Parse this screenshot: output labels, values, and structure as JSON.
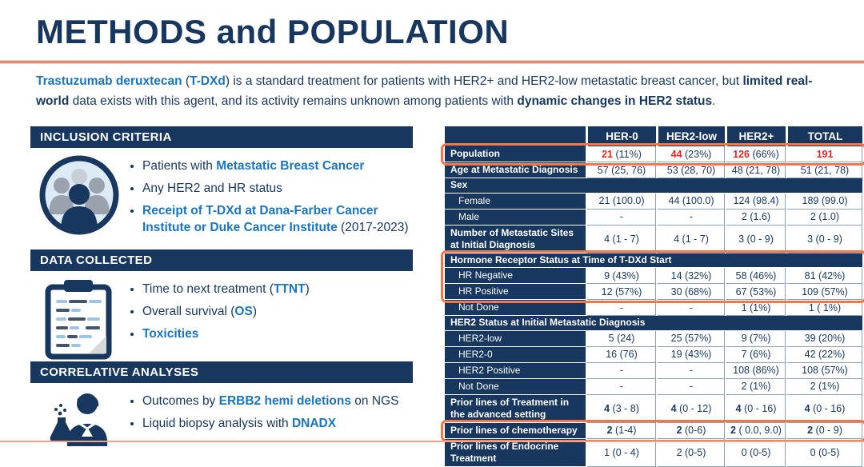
{
  "title": "METHODS and POPULATION",
  "colors": {
    "navy": "#17375E",
    "blue_accent": "#1B75BC",
    "red_emphasis": "#EE2420",
    "highlight_orange": "#F0784C",
    "divider_salmon": "#D9917B"
  },
  "intro": {
    "segments": [
      {
        "t": "Trastuzumab deruxtecan",
        "style": "blue-bold"
      },
      {
        "t": " (",
        "style": "normal"
      },
      {
        "t": "T-DXd",
        "style": "blue-bold"
      },
      {
        "t": ") is a standard treatment for patients with HER2+ and HER2-low metastatic breast cancer, but ",
        "style": "normal"
      },
      {
        "t": "limited real-world",
        "style": "navy-bold"
      },
      {
        "t": " data exists with this agent, and its activity remains unknown among patients with ",
        "style": "normal"
      },
      {
        "t": "dynamic changes in HER2 status",
        "style": "navy-bold"
      },
      {
        "t": ".",
        "style": "normal"
      }
    ]
  },
  "sections": [
    {
      "title": "INCLUSION CRITERIA",
      "icon": "people-icon",
      "bullets": [
        [
          {
            "t": "Patients with ",
            "style": "normal"
          },
          {
            "t": "Metastatic Breast Cancer",
            "style": "blue-bold"
          }
        ],
        [
          {
            "t": "Any HER2 and HR status",
            "style": "normal"
          }
        ],
        [
          {
            "t": "Receipt of T-DXd at Dana-Farber Cancer Institute or Duke Cancer Institute",
            "style": "blue-bold"
          },
          {
            "t": " (2017-2023)",
            "style": "normal"
          }
        ]
      ]
    },
    {
      "title": "DATA COLLECTED",
      "icon": "clipboard-icon",
      "bullets": [
        [
          {
            "t": "Time to next treatment (",
            "style": "normal"
          },
          {
            "t": "TTNT",
            "style": "blue-bold"
          },
          {
            "t": ")",
            "style": "normal"
          }
        ],
        [
          {
            "t": "Overall survival (",
            "style": "normal"
          },
          {
            "t": "OS",
            "style": "blue-bold"
          },
          {
            "t": ")",
            "style": "normal"
          }
        ],
        [
          {
            "t": "Toxicities",
            "style": "blue-bold"
          }
        ]
      ]
    },
    {
      "title": "CORRELATIVE ANALYSES",
      "icon": "scientist-icon",
      "bullets": [
        [
          {
            "t": "Outcomes by ",
            "style": "normal"
          },
          {
            "t": "ERBB2 hemi deletions",
            "style": "blue-bold"
          },
          {
            "t": " on NGS",
            "style": "normal"
          }
        ],
        [
          {
            "t": "Liquid biopsy analysis with ",
            "style": "normal"
          },
          {
            "t": "DNADX",
            "style": "blue-bold"
          }
        ]
      ]
    }
  ],
  "table": {
    "columns": [
      "",
      "HER-0",
      "HER2-low",
      "HER2+",
      "TOTAL"
    ],
    "rows": [
      {
        "id": "population",
        "label": "Population",
        "labelBold": true,
        "cells": [
          {
            "em": "21",
            "rest": " (11%)",
            "emClass": "red"
          },
          {
            "em": "44",
            "rest": " (23%)",
            "emClass": "red"
          },
          {
            "em": "126",
            "rest": " (66%)",
            "emClass": "red"
          },
          {
            "em": "191",
            "rest": "",
            "emClass": "red"
          }
        ]
      },
      {
        "label": "Age at Metastatic Diagnosis",
        "labelBold": true,
        "cells": [
          "57 (25, 76)",
          "53 (28, 70)",
          "48 (21, 78)",
          "51 (21, 78)"
        ]
      },
      {
        "type": "section",
        "label": "Sex"
      },
      {
        "label": "Female",
        "indent": true,
        "cells": [
          "21 (100.0)",
          "44 (100.0)",
          "124 (98.4)",
          "189 (99.0)"
        ]
      },
      {
        "label": "Male",
        "indent": true,
        "cells": [
          "-",
          "-",
          "2 (1.6)",
          "2 (1.0)"
        ]
      },
      {
        "label": "Number of Metastatic Sites at Initial Diagnosis",
        "labelBold": true,
        "cells": [
          "4 (1 - 7)",
          "4 (1 - 7)",
          "3 (0 - 9)",
          "3 (0 - 9)"
        ]
      },
      {
        "id": "hr-section",
        "type": "section",
        "label": "Hormone Receptor Status at Time of T-DXd Start"
      },
      {
        "id": "hr-negative",
        "label": "HR Negative",
        "indent": true,
        "cells": [
          "9 (43%)",
          "14 (32%)",
          "58 (46%)",
          "81 (42%)"
        ]
      },
      {
        "id": "hr-positive",
        "label": "HR Positive",
        "indent": true,
        "cells": [
          "12 (57%)",
          "30 (68%)",
          "67 (53%)",
          "109 (57%)"
        ]
      },
      {
        "label": "Not Done",
        "indent": true,
        "cells": [
          "-",
          "-",
          "1 (1%)",
          "1 ( 1%)"
        ]
      },
      {
        "type": "section",
        "label": "HER2 Status at Initial Metastatic Diagnosis"
      },
      {
        "label": "HER2-low",
        "indent": true,
        "cells": [
          "5 (24)",
          "25 (57%)",
          "9 (7%)",
          "39 (20%)"
        ]
      },
      {
        "label": "HER2-0",
        "indent": true,
        "cells": [
          "16 (76)",
          "19 (43%)",
          "7 (6%)",
          "42 (22%)"
        ]
      },
      {
        "label": "HER2 Positive",
        "indent": true,
        "cells": [
          "-",
          "-",
          "108 (86%)",
          "108 (57%)"
        ]
      },
      {
        "label": "Not Done",
        "indent": true,
        "cells": [
          "-",
          "-",
          "2 (1%)",
          "2 (1%)"
        ]
      },
      {
        "label": "Prior lines of Treatment in the advanced setting",
        "labelBold": true,
        "cells": [
          {
            "em": "4",
            "rest": " (3 - 8)",
            "emClass": "bold"
          },
          {
            "em": "4",
            "rest": " (0 - 12)",
            "emClass": "bold"
          },
          {
            "em": "4",
            "rest": " (0 - 16)",
            "emClass": "bold"
          },
          {
            "em": "4",
            "rest": " (0 - 16)",
            "emClass": "bold"
          }
        ]
      },
      {
        "id": "prior-chemo",
        "label": "Prior lines of chemotherapy",
        "labelBold": true,
        "cells": [
          {
            "em": "2",
            "rest": " (1-4)",
            "emClass": "bold"
          },
          {
            "em": "2",
            "rest": " (0-6)",
            "emClass": "bold"
          },
          {
            "em": "2",
            "rest": " ( 0.0, 9.0)",
            "emClass": "bold"
          },
          {
            "em": "2",
            "rest": " (0 - 9)",
            "emClass": "bold"
          }
        ]
      },
      {
        "label": "Prior lines of Endocrine Treatment",
        "labelBold": true,
        "cells": [
          "1 (0 - 4)",
          "2 (0-5)",
          "0 (0-5)",
          "0 (0-5)"
        ]
      }
    ],
    "highlights": [
      {
        "rows": [
          "population",
          "population"
        ]
      },
      {
        "rows": [
          "hr-section",
          "hr-positive"
        ]
      },
      {
        "rows": [
          "prior-chemo",
          "prior-chemo"
        ]
      }
    ]
  }
}
